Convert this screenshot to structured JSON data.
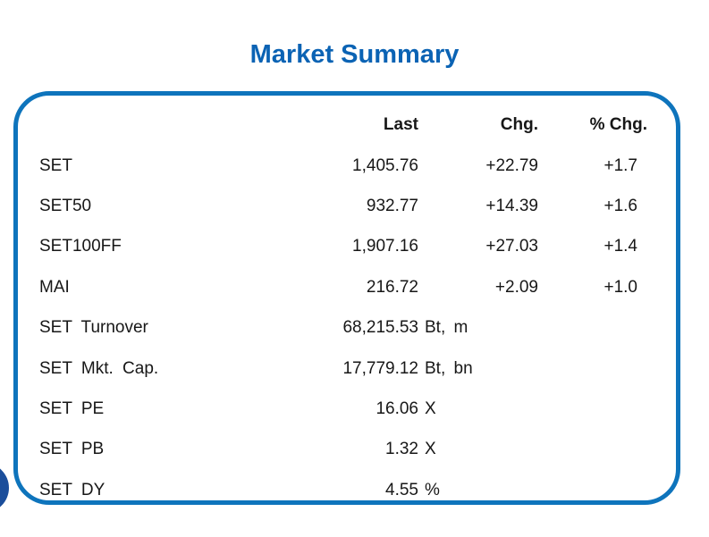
{
  "title": "Market Summary",
  "colors": {
    "title_blue": "#0b63b4",
    "panel_border_blue": "#0e74bc",
    "corner_circle_navy": "#1b4e9b",
    "text": "#171717"
  },
  "table": {
    "headers": {
      "last": "Last",
      "chg": "Chg.",
      "pct_chg": "% Chg."
    },
    "rows": [
      {
        "label": "SET",
        "last": "1,405.76",
        "unit": "",
        "chg": "+22.79",
        "pct": "+1.7"
      },
      {
        "label": "SET50",
        "last": "932.77",
        "unit": "",
        "chg": "+14.39",
        "pct": "+1.6"
      },
      {
        "label": "SET100FF",
        "last": "1,907.16",
        "unit": "",
        "chg": "+27.03",
        "pct": "+1.4"
      },
      {
        "label": "MAI",
        "last": "216.72",
        "unit": "",
        "chg": "+2.09",
        "pct": "+1.0"
      },
      {
        "label": "SET Turnover",
        "last": "68,215.53",
        "unit": "Bt, m",
        "chg": "",
        "pct": ""
      },
      {
        "label": "SET Mkt. Cap.",
        "last": "17,779.12",
        "unit": "Bt, bn",
        "chg": "",
        "pct": ""
      },
      {
        "label": "SET PE",
        "last": "16.06",
        "unit": "X",
        "chg": "",
        "pct": ""
      },
      {
        "label": "SET PB",
        "last": "1.32",
        "unit": "X",
        "chg": "",
        "pct": ""
      },
      {
        "label": "SET DY",
        "last": "4.55",
        "unit": "%",
        "chg": "",
        "pct": ""
      }
    ]
  }
}
